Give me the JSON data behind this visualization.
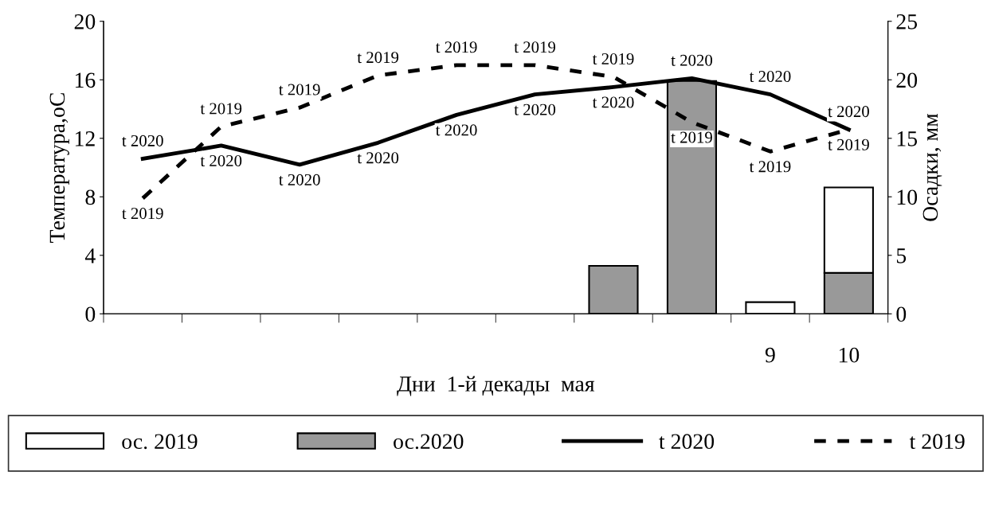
{
  "chart_data": {
    "type": "bar",
    "xlabel": "Дни  1-й декады  мая",
    "ylabel": "Температура,оС",
    "y2label": "Осадки, мм",
    "categories": [
      null,
      null,
      null,
      null,
      null,
      null,
      null,
      null,
      "9",
      "10"
    ],
    "stacked": true,
    "ylim": [
      0,
      20
    ],
    "yticks": [
      0,
      4,
      8,
      12,
      16,
      20
    ],
    "y2lim": [
      0,
      25
    ],
    "y2ticks": [
      0,
      5,
      10,
      15,
      20,
      25
    ],
    "legend": "bottom",
    "grid": false,
    "series": [
      {
        "name": "ос.2020",
        "axis": "y2",
        "color": "#999999",
        "values": [
          null,
          null,
          null,
          null,
          null,
          null,
          4.1,
          19.9,
          null,
          3.5
        ]
      },
      {
        "name": "ос. 2019",
        "axis": "y2",
        "color": "#ffffff",
        "values": [
          null,
          null,
          null,
          null,
          null,
          null,
          null,
          null,
          1.0,
          7.3
        ]
      },
      {
        "name": "t 2020",
        "type": "line",
        "color": "#000000",
        "line_style": "solid",
        "values": [
          10.6,
          11.5,
          10.2,
          11.7,
          13.6,
          15.0,
          15.5,
          16.1,
          15.0,
          12.6
        ],
        "value_labels": [
          "t 2020",
          "t 2020",
          "t 2020",
          "t 2020",
          "t 2020",
          "t 2020",
          "t 2020",
          "t 2020",
          "t 2020",
          "t 2020"
        ]
      },
      {
        "name": "t 2019",
        "type": "line",
        "color": "#000000",
        "line_style": "dashed",
        "values": [
          7.9,
          12.8,
          14.1,
          16.3,
          17.0,
          17.0,
          16.2,
          13.1,
          11.1,
          12.6
        ],
        "value_labels": [
          "t 2019",
          "t 2019",
          "t 2019",
          "t 2019",
          "t 2019",
          "t 2019",
          "t 2019",
          "t 2019",
          "t 2019",
          "t 2019"
        ]
      }
    ]
  }
}
